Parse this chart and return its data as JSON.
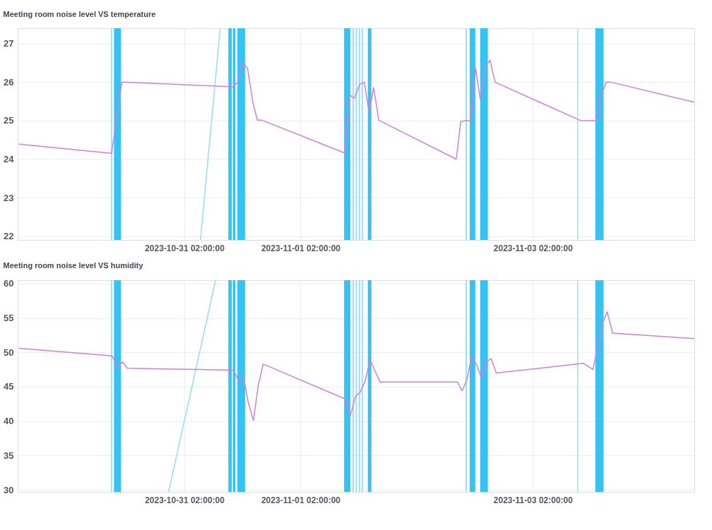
{
  "chart_data": [
    {
      "type": "line",
      "title": "Meeting room noise level VS temperature",
      "grid": true,
      "xlim": [
        "2023-10-29T15:33",
        "2023-11-04T11:22"
      ],
      "xticks": [
        {
          "value": "2023-10-31T02:00",
          "label": "2023-10-31 02:00:00"
        },
        {
          "value": "2023-11-01T02:00",
          "label": "2023-11-01 02:00:00"
        },
        {
          "value": "2023-11-03T02:00",
          "label": "2023-11-03 02:00:00"
        }
      ],
      "ylim": [
        21.9,
        27.4
      ],
      "yticks": [
        22,
        23,
        24,
        25,
        26,
        27
      ],
      "bands": [
        {
          "axis": "x",
          "from": "2023-10-30T10:48",
          "to": "2023-10-30T11:05",
          "color": "#9ddff8"
        },
        {
          "axis": "x",
          "from": "2023-10-30T11:27",
          "to": "2023-10-30T12:53",
          "color": "#35c2f4"
        },
        {
          "axis": "x",
          "from": "2023-10-31T11:05",
          "to": "2023-10-31T11:48",
          "color": "#35c2f4"
        },
        {
          "axis": "x",
          "from": "2023-10-31T12:01",
          "to": "2023-10-31T12:31",
          "color": "#35c2f4"
        },
        {
          "axis": "x",
          "from": "2023-10-31T12:57",
          "to": "2023-10-31T14:32",
          "color": "#35c2f4"
        },
        {
          "axis": "x",
          "from": "2023-11-01T11:00",
          "to": "2023-11-01T12:18",
          "color": "#35c2f4"
        },
        {
          "axis": "x",
          "from": "2023-11-01T12:44",
          "to": "2023-11-01T13:01",
          "color": "#9ddff8"
        },
        {
          "axis": "x",
          "from": "2023-11-01T13:23",
          "to": "2023-11-01T13:40",
          "color": "#9ddff8"
        },
        {
          "axis": "x",
          "from": "2023-11-01T14:02",
          "to": "2023-11-01T14:19",
          "color": "#9ddff8"
        },
        {
          "axis": "x",
          "from": "2023-11-01T14:37",
          "to": "2023-11-01T14:54",
          "color": "#9ddff8"
        },
        {
          "axis": "x",
          "from": "2023-11-01T15:54",
          "to": "2023-11-01T16:38",
          "color": "#35c2f4"
        },
        {
          "axis": "x",
          "from": "2023-11-02T12:05",
          "to": "2023-11-02T12:22",
          "color": "#9ddff8"
        },
        {
          "axis": "x",
          "from": "2023-11-02T12:57",
          "to": "2023-11-02T14:06",
          "color": "#35c2f4"
        },
        {
          "axis": "x",
          "from": "2023-11-02T15:07",
          "to": "2023-11-02T16:42",
          "color": "#35c2f4"
        },
        {
          "axis": "x",
          "from": "2023-11-03T11:09",
          "to": "2023-11-03T11:22",
          "color": "#9ddff8"
        },
        {
          "axis": "x",
          "from": "2023-11-03T14:54",
          "to": "2023-11-03T16:37",
          "color": "#35c2f4"
        }
      ],
      "series": [
        {
          "type": "line",
          "color": "#94dcf7",
          "x": [
            "2023-10-31T05:19",
            "2023-10-31T09:24"
          ],
          "values": [
            21.9,
            27.4
          ]
        },
        {
          "color": "#cc80dd",
          "x": [
            "2023-10-29T15:50",
            "2023-10-30T10:58",
            "2023-10-30T13:04",
            "2023-10-31T12:03",
            "2023-10-31T13:06",
            "2023-10-31T14:04",
            "2023-10-31T15:04",
            "2023-10-31T16:08",
            "2023-10-31T17:05",
            "2023-10-31T18:03",
            "2023-11-01T11:06",
            "2023-11-01T12:12",
            "2023-11-01T13:08",
            "2023-11-01T14:13",
            "2023-11-01T15:11",
            "2023-11-01T16:09",
            "2023-11-01T17:06",
            "2023-11-01T18:10",
            "2023-11-02T10:10",
            "2023-11-02T11:07",
            "2023-11-02T12:05",
            "2023-11-02T13:12",
            "2023-11-02T14:09",
            "2023-11-02T15:07",
            "2023-11-02T16:10",
            "2023-11-02T17:08",
            "2023-11-02T18:11",
            "2023-11-03T11:52",
            "2023-11-03T15:08",
            "2023-11-03T16:11",
            "2023-11-03T17:09",
            "2023-11-03T18:06",
            "2023-11-04T11:19"
          ],
          "values": [
            24.39,
            24.15,
            26.0,
            25.88,
            26.0,
            26.52,
            26.35,
            25.48,
            25.01,
            25.01,
            24.16,
            25.66,
            25.58,
            25.94,
            26.0,
            25.22,
            25.86,
            25.01,
            24.0,
            24.98,
            25.0,
            25.0,
            26.37,
            25.57,
            26.37,
            26.57,
            26.0,
            25.0,
            25.0,
            25.68,
            26.0,
            26.0,
            25.48
          ]
        }
      ]
    },
    {
      "type": "line",
      "title": "Meeting room noise level VS humidity",
      "grid": true,
      "xlim": [
        "2023-10-29T15:33",
        "2023-11-04T11:22"
      ],
      "xticks": [
        {
          "value": "2023-10-31T02:00",
          "label": "2023-10-31 02:00:00"
        },
        {
          "value": "2023-11-01T02:00",
          "label": "2023-11-01 02:00:00"
        },
        {
          "value": "2023-11-03T02:00",
          "label": "2023-11-03 02:00:00"
        }
      ],
      "ylim": [
        29.7,
        60.5
      ],
      "yticks": [
        30,
        35,
        40,
        45,
        50,
        55,
        60
      ],
      "bands": [
        {
          "axis": "x",
          "from": "2023-10-30T10:48",
          "to": "2023-10-30T11:05",
          "color": "#9ddff8"
        },
        {
          "axis": "x",
          "from": "2023-10-30T11:27",
          "to": "2023-10-30T12:53",
          "color": "#35c2f4"
        },
        {
          "axis": "x",
          "from": "2023-10-31T11:05",
          "to": "2023-10-31T11:48",
          "color": "#35c2f4"
        },
        {
          "axis": "x",
          "from": "2023-10-31T12:01",
          "to": "2023-10-31T12:31",
          "color": "#35c2f4"
        },
        {
          "axis": "x",
          "from": "2023-10-31T12:57",
          "to": "2023-10-31T14:32",
          "color": "#35c2f4"
        },
        {
          "axis": "x",
          "from": "2023-11-01T11:00",
          "to": "2023-11-01T12:18",
          "color": "#35c2f4"
        },
        {
          "axis": "x",
          "from": "2023-11-01T12:44",
          "to": "2023-11-01T13:01",
          "color": "#9ddff8"
        },
        {
          "axis": "x",
          "from": "2023-11-01T13:23",
          "to": "2023-11-01T13:40",
          "color": "#9ddff8"
        },
        {
          "axis": "x",
          "from": "2023-11-01T14:02",
          "to": "2023-11-01T14:19",
          "color": "#9ddff8"
        },
        {
          "axis": "x",
          "from": "2023-11-01T14:37",
          "to": "2023-11-01T14:54",
          "color": "#9ddff8"
        },
        {
          "axis": "x",
          "from": "2023-11-01T15:54",
          "to": "2023-11-01T16:38",
          "color": "#35c2f4"
        },
        {
          "axis": "x",
          "from": "2023-11-02T12:05",
          "to": "2023-11-02T12:22",
          "color": "#9ddff8"
        },
        {
          "axis": "x",
          "from": "2023-11-02T12:57",
          "to": "2023-11-02T14:06",
          "color": "#35c2f4"
        },
        {
          "axis": "x",
          "from": "2023-11-02T15:07",
          "to": "2023-11-02T16:42",
          "color": "#35c2f4"
        },
        {
          "axis": "x",
          "from": "2023-11-03T11:09",
          "to": "2023-11-03T11:22",
          "color": "#9ddff8"
        },
        {
          "axis": "x",
          "from": "2023-11-03T14:54",
          "to": "2023-11-03T16:37",
          "color": "#35c2f4"
        }
      ],
      "series": [
        {
          "type": "line",
          "color": "#94dcf7",
          "x": [
            "2023-10-30T22:44",
            "2023-10-31T08:27"
          ],
          "values": [
            29.7,
            60.5
          ]
        },
        {
          "color": "#cc80dd",
          "x": [
            "2023-10-29T15:50",
            "2023-10-30T11:03",
            "2023-10-30T12:10",
            "2023-10-30T13:13",
            "2023-10-30T14:11",
            "2023-10-31T12:11",
            "2023-10-31T13:14",
            "2023-10-31T14:12",
            "2023-10-31T15:10",
            "2023-10-31T16:16",
            "2023-10-31T17:14",
            "2023-10-31T18:17",
            "2023-11-01T11:18",
            "2023-11-01T12:18",
            "2023-11-01T13:21",
            "2023-11-01T14:19",
            "2023-11-01T15:17",
            "2023-11-01T16:23",
            "2023-11-01T18:24",
            "2023-11-02T10:24",
            "2023-11-02T11:22",
            "2023-11-02T12:20",
            "2023-11-02T13:23",
            "2023-11-02T14:23",
            "2023-11-02T15:21",
            "2023-11-02T16:25",
            "2023-11-02T17:22",
            "2023-11-02T18:26",
            "2023-11-03T12:29",
            "2023-11-03T14:25",
            "2023-11-03T16:26",
            "2023-11-03T17:23",
            "2023-11-03T18:27",
            "2023-11-04T11:19"
          ],
          "values": [
            50.6,
            49.5,
            47.9,
            48.6,
            47.7,
            47.4,
            45.8,
            46.5,
            42.8,
            40.1,
            45.1,
            48.3,
            43.2,
            40.8,
            43.6,
            44.2,
            45.7,
            48.9,
            45.7,
            45.7,
            44.4,
            45.9,
            49.4,
            48.2,
            46.3,
            48.6,
            49.1,
            47.0,
            48.4,
            47.5,
            54.3,
            55.9,
            52.8,
            52.0
          ]
        }
      ]
    }
  ]
}
